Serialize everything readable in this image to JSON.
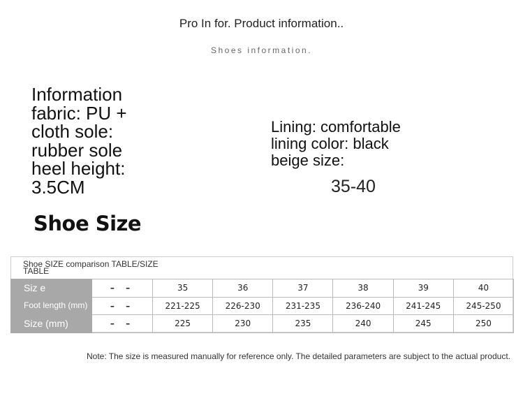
{
  "header": {
    "title": "Pro In for. Product information..",
    "subtitle": "Shoes information."
  },
  "info_left": [
    "Information",
    "fabric: PU +",
    "cloth sole:",
    "rubber sole",
    "heel height:",
    "3.5CM"
  ],
  "info_right": [
    "Lining: comfortable",
    "lining color: black",
    "beige size:"
  ],
  "size_range": "35-40",
  "section_title": "Shoe Size",
  "table": {
    "title_line1": "Shoe SIZE comparison TABLE/SIZE",
    "title_line2": "TABLE",
    "rows": [
      {
        "label": "Siz e",
        "dash": "– –",
        "values": [
          "35",
          "36",
          "37",
          "38",
          "39",
          "40"
        ]
      },
      {
        "label": "Foot length (mm)",
        "dash": "– –",
        "values": [
          "221-225",
          "226-230",
          "231-235",
          "236-240",
          "241-245",
          "245-250"
        ]
      },
      {
        "label": "Size (mm)",
        "dash": "– –",
        "values": [
          "225",
          "230",
          "235",
          "240",
          "245",
          "250"
        ]
      }
    ]
  },
  "note": "Note: The size is measured manually for reference only. The detailed parameters are subject to the actual product."
}
